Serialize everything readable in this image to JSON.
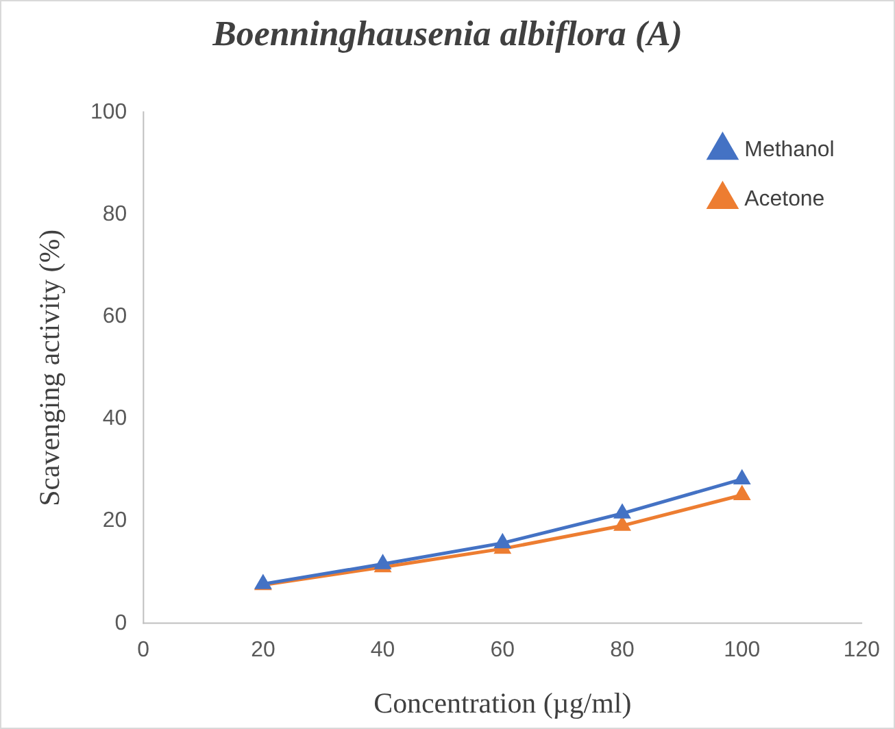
{
  "chart_data": {
    "type": "line",
    "title": "Boenninghausenia albiflora (A)",
    "xlabel": "Concentration (µg/ml)",
    "ylabel": "Scavenging activity (%)",
    "x": [
      20,
      40,
      60,
      80,
      100
    ],
    "series": [
      {
        "name": "Methanol",
        "color": "#4472c4",
        "values": [
          7.7,
          11.6,
          15.7,
          21.5,
          28.2
        ]
      },
      {
        "name": "Acetone",
        "color": "#ed7d31",
        "values": [
          7.5,
          11.0,
          14.6,
          19.1,
          25.1
        ]
      }
    ],
    "xlim": [
      0,
      120
    ],
    "xticks": [
      0,
      20,
      40,
      60,
      80,
      100,
      120
    ],
    "ylim": [
      0,
      100
    ],
    "yticks": [
      0,
      20,
      40,
      60,
      80,
      100
    ],
    "grid": false,
    "legend": "top right",
    "marker": "triangle",
    "line_style": "solid"
  }
}
